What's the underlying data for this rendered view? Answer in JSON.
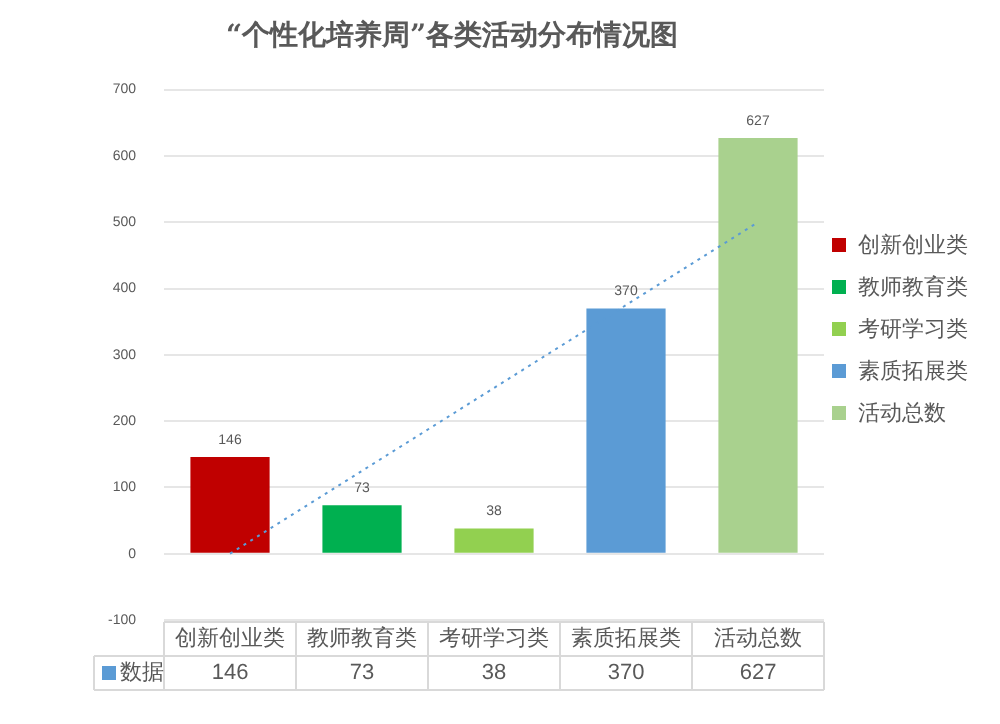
{
  "chart_data": {
    "type": "bar",
    "title": "“个性化培养周”各类活动分布情况图",
    "categories": [
      "创新创业类",
      "教师教育类",
      "考研学习类",
      "素质拓展类",
      "活动总数"
    ],
    "series": [
      {
        "name": "数据",
        "color": "#5b9bd5",
        "colors": [
          "#c00000",
          "#00b050",
          "#92d050",
          "#5b9bd5",
          "#a9d18e"
        ],
        "values": [
          146,
          73,
          38,
          370,
          627
        ],
        "value_labels": [
          "146",
          "73",
          "38",
          "370",
          "627"
        ]
      },
      {
        "type": "line",
        "x": [
          "创新创业类",
          "活动总数"
        ],
        "values": [
          0,
          500
        ],
        "color": "#5b9bd5",
        "line_style": "dotted",
        "marker": "none"
      }
    ],
    "ylim": [
      -100,
      700
    ],
    "yticks": [
      -100,
      0,
      100,
      200,
      300,
      400,
      500,
      600,
      700
    ],
    "grid": "y",
    "legend": "bottom left",
    "tick_labels": "y"
  }
}
